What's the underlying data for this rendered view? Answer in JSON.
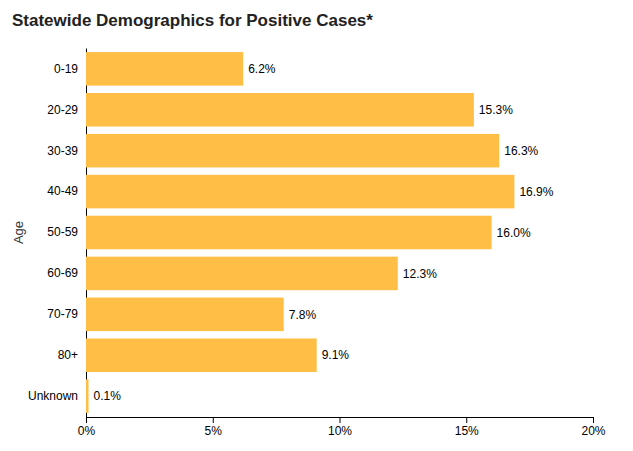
{
  "chart_data": {
    "type": "bar",
    "orientation": "horizontal",
    "title": "Statewide Demographics for Positive Cases*",
    "ylabel": "Age",
    "categories": [
      "0-19",
      "20-29",
      "30-39",
      "40-49",
      "50-59",
      "60-69",
      "70-79",
      "80+",
      "Unknown"
    ],
    "values": [
      6.2,
      15.3,
      16.3,
      16.9,
      16.0,
      12.3,
      7.8,
      9.1,
      0.1
    ],
    "value_labels": [
      "6.2%",
      "15.3%",
      "16.3%",
      "16.9%",
      "16.0%",
      "12.3%",
      "7.8%",
      "9.1%",
      "0.1%"
    ],
    "data_labels": true,
    "color": "#FFBE45",
    "xlim": [
      0,
      20
    ],
    "xticks": [
      {
        "value": 0,
        "label": "0%"
      },
      {
        "value": 5,
        "label": "5%"
      },
      {
        "value": 10,
        "label": "10%"
      },
      {
        "value": 15,
        "label": "15%"
      },
      {
        "value": 20,
        "label": "20%"
      }
    ],
    "grid": false
  }
}
